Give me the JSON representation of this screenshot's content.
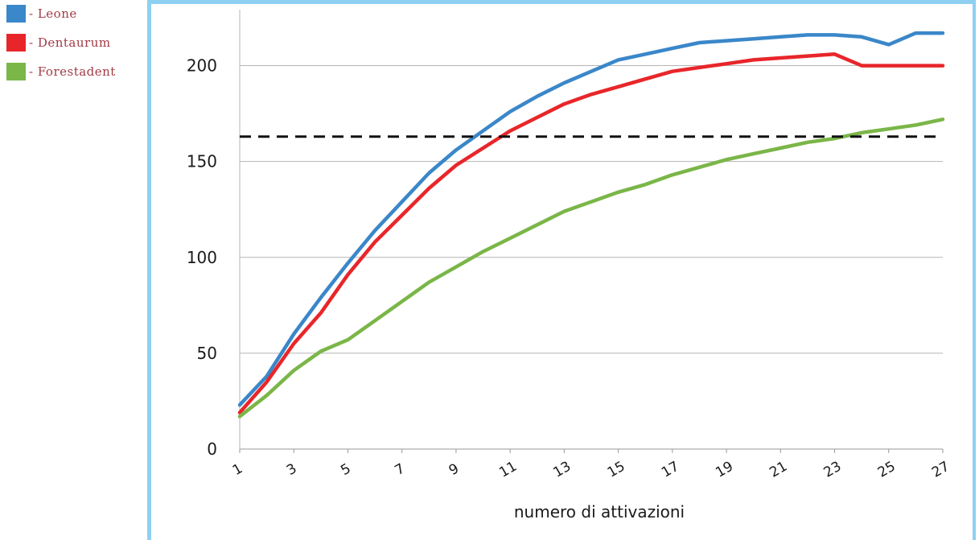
{
  "legend": {
    "items": [
      {
        "label": "- Leone",
        "color": "#3a87c9"
      },
      {
        "label": "- Dentaurum",
        "color": "#e8262a"
      },
      {
        "label": "- Forestadent",
        "color": "#7ab648"
      }
    ]
  },
  "chart_data": {
    "type": "line",
    "xlabel": "numero di attivazioni",
    "ylabel": "",
    "xlim": [
      1,
      27
    ],
    "ylim": [
      0,
      225
    ],
    "yticks": [
      0,
      50,
      100,
      150,
      200
    ],
    "xticks": [
      1,
      3,
      5,
      7,
      9,
      11,
      13,
      15,
      17,
      19,
      21,
      23,
      25,
      27
    ],
    "grid": "horizontal",
    "x": [
      1,
      2,
      3,
      4,
      5,
      6,
      7,
      8,
      9,
      10,
      11,
      12,
      13,
      14,
      15,
      16,
      17,
      18,
      19,
      20,
      21,
      22,
      23,
      24,
      25,
      26,
      27
    ],
    "series": [
      {
        "name": "Leone",
        "color": "#3a87c9",
        "values": [
          23,
          38,
          60,
          79,
          97,
          114,
          129,
          144,
          156,
          166,
          176,
          184,
          191,
          197,
          203,
          206,
          209,
          212,
          213,
          214,
          215,
          216,
          216,
          215,
          211,
          217,
          217
        ]
      },
      {
        "name": "Dentaurum",
        "color": "#e8262a",
        "values": [
          19,
          35,
          55,
          71,
          91,
          108,
          122,
          136,
          148,
          157,
          166,
          173,
          180,
          185,
          189,
          193,
          197,
          199,
          201,
          203,
          204,
          205,
          206,
          200,
          200,
          200,
          200
        ]
      },
      {
        "name": "Forestadent",
        "color": "#7ab648",
        "values": [
          17,
          28,
          41,
          51,
          57,
          67,
          77,
          87,
          95,
          103,
          110,
          117,
          124,
          129,
          134,
          138,
          143,
          147,
          151,
          154,
          157,
          160,
          162,
          165,
          167,
          169,
          172
        ]
      }
    ],
    "reference_line": {
      "y": 163,
      "style": "dashed",
      "color": "#111111"
    }
  }
}
